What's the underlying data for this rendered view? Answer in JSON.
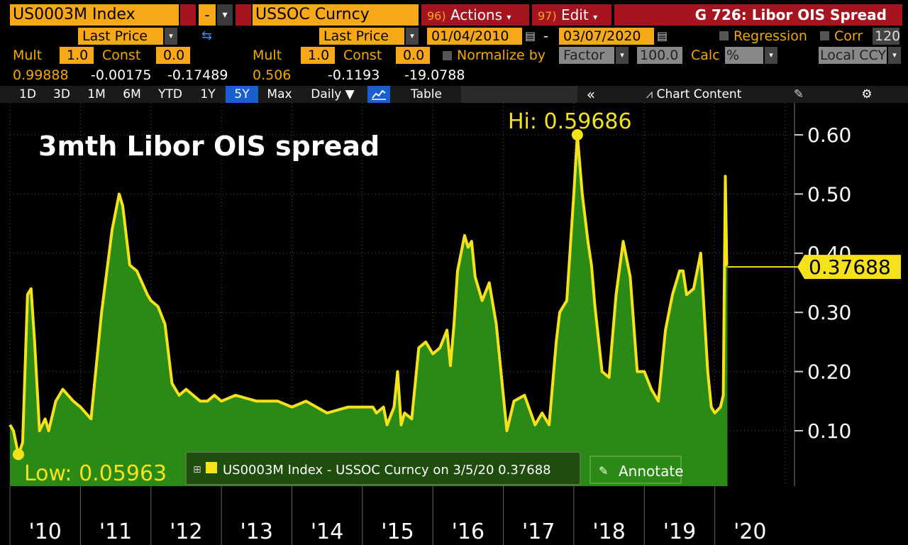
{
  "header": {
    "security1": "US0003M Index",
    "minus": "-",
    "security2": "USSOC Curncy",
    "actions_num": "96)",
    "actions_label": "Actions",
    "edit_num": "97)",
    "edit_label": "Edit",
    "title": "G 726: Libor OIS Spread"
  },
  "row2": {
    "field1": "Last Price",
    "field2": "Last Price",
    "start_date": "01/04/2010",
    "dash": "-",
    "end_date": "03/07/2020",
    "regression": "Regression",
    "corr": "Corr",
    "corr_value": "120"
  },
  "row3": {
    "mult_label": "Mult",
    "mult1": "1.0",
    "const_label": "Const",
    "const1": "0.0",
    "mult2": "1.0",
    "const2": "0.0",
    "normalize": "Normalize by",
    "factor": "Factor",
    "factor_value": "100.0",
    "calc": "Calc",
    "calc_value": "%",
    "local": "Local CCY"
  },
  "row4": {
    "v1": "0.99888",
    "v2": "-0.00175",
    "v3": "-0.17489",
    "v4": "0.506",
    "v5": "-0.1193",
    "v6": "-19.0788"
  },
  "toolbar": {
    "periods": [
      "1D",
      "3D",
      "1M",
      "6M",
      "YTD",
      "1Y",
      "5Y",
      "Max"
    ],
    "selected": "5Y",
    "freq": "Daily ▼",
    "table": "Table",
    "collapse": "«",
    "chart_content": "Chart Content"
  },
  "colors": {
    "accent": "#f7a818",
    "fill": "#2b8a15",
    "line": "#f6e21a",
    "title_bar": "#a61420"
  },
  "chart_data": {
    "type": "area",
    "title": "3mth Libor OIS spread",
    "hi_label": "Hi: 0.59686",
    "low_label": "Low: 0.05963",
    "last_label": "0.37688",
    "legend": "US0003M Index - USSOC Curncy on 3/5/20 0.37688",
    "annotate": "Annotate",
    "x_ticks": [
      "'10",
      "'11",
      "'12",
      "'13",
      "'14",
      "'15",
      "'16",
      "'17",
      "'18",
      "'19",
      "'20"
    ],
    "y_ticks": [
      "0.10",
      "0.20",
      "0.30",
      "0.40",
      "0.50",
      "0.60"
    ],
    "y_tick_values": [
      0.1,
      0.2,
      0.3,
      0.4,
      0.5,
      0.6
    ],
    "ylim": [
      0.0,
      0.65
    ],
    "xlim": [
      2010.0,
      2021.0
    ],
    "series": [
      {
        "name": "US0003M Index - USSOC Curncy",
        "x": [
          2010.0,
          2010.05,
          2010.12,
          2010.18,
          2010.25,
          2010.3,
          2010.35,
          2010.42,
          2010.5,
          2010.55,
          2010.65,
          2010.75,
          2010.9,
          2011.0,
          2011.15,
          2011.3,
          2011.45,
          2011.55,
          2011.6,
          2011.7,
          2011.8,
          2011.95,
          2012.0,
          2012.1,
          2012.2,
          2012.3,
          2012.4,
          2012.5,
          2012.6,
          2012.7,
          2012.8,
          2012.9,
          2013.0,
          2013.2,
          2013.5,
          2013.8,
          2014.0,
          2014.2,
          2014.5,
          2014.8,
          2015.0,
          2015.15,
          2015.2,
          2015.3,
          2015.35,
          2015.45,
          2015.5,
          2015.55,
          2015.6,
          2015.7,
          2015.8,
          2015.9,
          2016.0,
          2016.1,
          2016.2,
          2016.25,
          2016.3,
          2016.35,
          2016.45,
          2016.5,
          2016.55,
          2016.6,
          2016.7,
          2016.8,
          2016.9,
          2017.0,
          2017.05,
          2017.15,
          2017.3,
          2017.45,
          2017.55,
          2017.65,
          2017.75,
          2017.8,
          2017.9,
          2018.0,
          2018.05,
          2018.12,
          2018.2,
          2018.25,
          2018.3,
          2018.4,
          2018.5,
          2018.6,
          2018.7,
          2018.8,
          2018.9,
          2019.0,
          2019.1,
          2019.2,
          2019.3,
          2019.35,
          2019.4,
          2019.5,
          2019.55,
          2019.6,
          2019.7,
          2019.8,
          2019.9,
          2019.95,
          2020.0,
          2020.08,
          2020.12,
          2020.15,
          2020.17,
          2020.18
        ],
        "values": [
          0.11,
          0.1,
          0.06,
          0.08,
          0.33,
          0.34,
          0.25,
          0.1,
          0.12,
          0.1,
          0.15,
          0.17,
          0.15,
          0.14,
          0.12,
          0.3,
          0.44,
          0.5,
          0.48,
          0.38,
          0.37,
          0.33,
          0.32,
          0.31,
          0.28,
          0.18,
          0.16,
          0.17,
          0.16,
          0.15,
          0.15,
          0.16,
          0.15,
          0.16,
          0.15,
          0.15,
          0.14,
          0.15,
          0.13,
          0.14,
          0.14,
          0.14,
          0.13,
          0.14,
          0.11,
          0.14,
          0.2,
          0.11,
          0.13,
          0.12,
          0.24,
          0.25,
          0.23,
          0.24,
          0.27,
          0.21,
          0.28,
          0.37,
          0.43,
          0.41,
          0.42,
          0.36,
          0.32,
          0.35,
          0.28,
          0.16,
          0.1,
          0.15,
          0.16,
          0.11,
          0.13,
          0.11,
          0.25,
          0.3,
          0.32,
          0.5,
          0.6,
          0.5,
          0.42,
          0.38,
          0.31,
          0.2,
          0.19,
          0.33,
          0.42,
          0.36,
          0.2,
          0.2,
          0.17,
          0.15,
          0.27,
          0.3,
          0.33,
          0.37,
          0.37,
          0.33,
          0.34,
          0.4,
          0.2,
          0.14,
          0.13,
          0.14,
          0.16,
          0.53,
          0.38,
          0.38
        ]
      }
    ]
  }
}
